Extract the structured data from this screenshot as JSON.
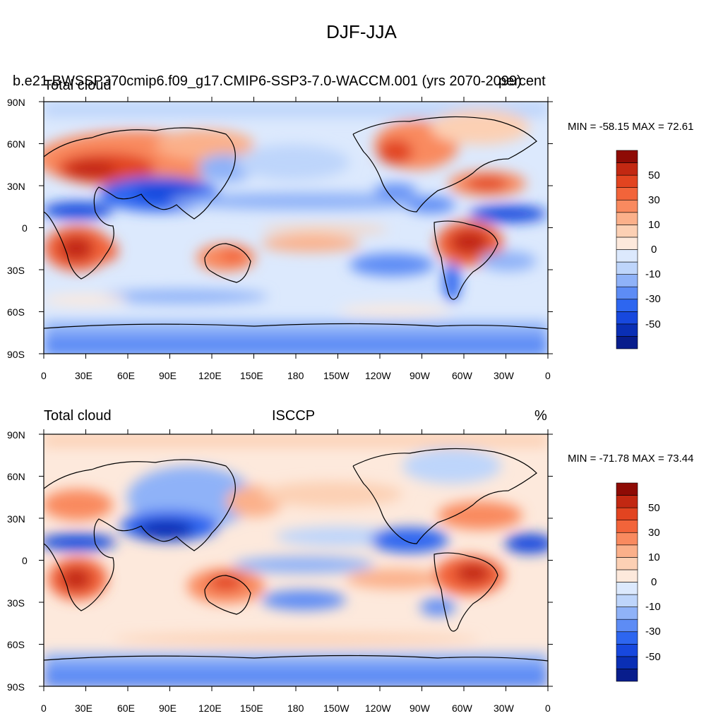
{
  "figure": {
    "title": "DJF-JJA",
    "colors": {
      "scale": [
        "#081d8c",
        "#0a2fb5",
        "#1748de",
        "#2d66f0",
        "#5d8cf5",
        "#8fb2f8",
        "#bed5fb",
        "#dce9fd",
        "#fde9dc",
        "#fcd0b4",
        "#fbb08a",
        "#f98a5f",
        "#f2643a",
        "#e24420",
        "#c22812",
        "#8e0b05"
      ]
    },
    "panels": [
      {
        "id": "top",
        "left_title": "Total cloud",
        "run_title": "b.e21.BWSSP370cmip6.f09_g17.CMIP6-SSP3-7.0-WACCM.001 (yrs 2070-2099)",
        "right_title": "percent",
        "minmax": "MIN = -58.15 MAX =  72.61"
      },
      {
        "id": "bottom",
        "left_title": "Total cloud",
        "center_title": "ISCCP",
        "right_title": "%",
        "minmax": "MIN = -71.78 MAX =  73.44"
      }
    ],
    "lat_ticks": [
      "90N",
      "60N",
      "30N",
      "0",
      "30S",
      "60S",
      "90S"
    ],
    "lon_ticks": [
      "0",
      "30E",
      "60E",
      "90E",
      "120E",
      "150E",
      "180",
      "150W",
      "120W",
      "90W",
      "60W",
      "30W",
      "0"
    ],
    "colorbar_labels": [
      "50",
      "30",
      "10",
      "0",
      "-10",
      "-30",
      "-50"
    ]
  }
}
